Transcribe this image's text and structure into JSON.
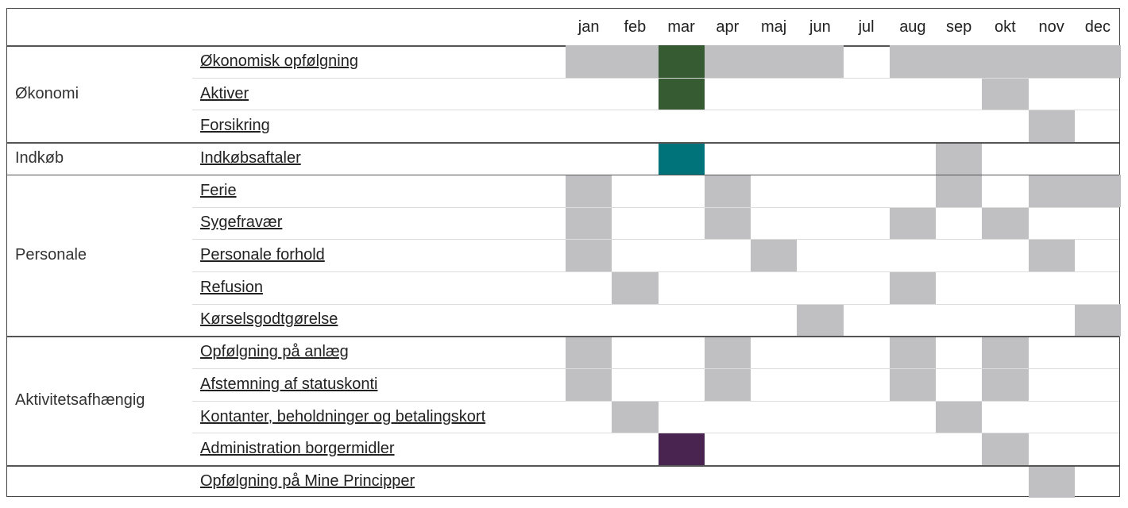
{
  "header": {
    "months": [
      "jan",
      "feb",
      "mar",
      "apr",
      "maj",
      "jun",
      "jul",
      "aug",
      "sep",
      "okt",
      "nov",
      "dec"
    ]
  },
  "groups": [
    {
      "name": "Økonomi",
      "rows": [
        {
          "label": "Økonomisk opfølgning",
          "cells": [
            "#c0bfc2",
            "#c0bfc2",
            "#365a32",
            "#c0bfc2",
            "#c0bfc2",
            "#c0bfc2",
            null,
            "#c0bfc2",
            "#c0bfc2",
            "#c0bfc2",
            "#c0bfc2",
            "#c0bfc2"
          ]
        },
        {
          "label": "Aktiver",
          "cells": [
            null,
            null,
            "#365a32",
            null,
            null,
            null,
            null,
            null,
            null,
            "#c0bfc2",
            null,
            null
          ]
        },
        {
          "label": "Forsikring",
          "cells": [
            null,
            null,
            null,
            null,
            null,
            null,
            null,
            null,
            null,
            null,
            "#c0bfc2",
            null
          ]
        }
      ]
    },
    {
      "name": "Indkøb",
      "rows": [
        {
          "label": "Indkøbsaftaler",
          "cells": [
            null,
            null,
            "#00727a",
            null,
            null,
            null,
            null,
            null,
            "#c0bfc2",
            null,
            null,
            null
          ]
        }
      ]
    },
    {
      "name": "Personale",
      "rows": [
        {
          "label": "Ferie",
          "cells": [
            "#c0bfc2",
            null,
            null,
            "#c0bfc2",
            null,
            null,
            null,
            null,
            "#c0bfc2",
            null,
            "#c0bfc2",
            "#c0bfc2"
          ]
        },
        {
          "label": "Sygefravær",
          "cells": [
            "#c0bfc2",
            null,
            null,
            "#c0bfc2",
            null,
            null,
            null,
            "#c0bfc2",
            null,
            "#c0bfc2",
            null,
            null
          ]
        },
        {
          "label": "Personale forhold",
          "cells": [
            "#c0bfc2",
            null,
            null,
            null,
            "#c0bfc2",
            null,
            null,
            null,
            null,
            null,
            "#c0bfc2",
            null
          ]
        },
        {
          "label": "Refusion",
          "cells": [
            null,
            "#c0bfc2",
            null,
            null,
            null,
            null,
            null,
            "#c0bfc2",
            null,
            null,
            null,
            null
          ]
        },
        {
          "label": "Kørselsgodtgørelse",
          "cells": [
            null,
            null,
            null,
            null,
            null,
            "#c0bfc2",
            null,
            null,
            null,
            null,
            null,
            "#c0bfc2"
          ]
        }
      ]
    },
    {
      "name": "Aktivitetsafhængig",
      "rows": [
        {
          "label": "Opfølgning på anlæg",
          "cells": [
            "#c0bfc2",
            null,
            null,
            "#c0bfc2",
            null,
            null,
            null,
            "#c0bfc2",
            null,
            "#c0bfc2",
            null,
            null
          ]
        },
        {
          "label": "Afstemning af statuskonti",
          "cells": [
            "#c0bfc2",
            null,
            null,
            "#c0bfc2",
            null,
            null,
            null,
            "#c0bfc2",
            null,
            "#c0bfc2",
            null,
            null
          ]
        },
        {
          "label": "Kontanter, beholdninger og betalingskort",
          "cells": [
            null,
            "#c0bfc2",
            null,
            null,
            null,
            null,
            null,
            null,
            "#c0bfc2",
            null,
            null,
            null
          ]
        },
        {
          "label": "Administration borgermidler",
          "cells": [
            null,
            null,
            "#4a2450",
            null,
            null,
            null,
            null,
            null,
            null,
            "#c0bfc2",
            null,
            null
          ]
        }
      ]
    },
    {
      "rows": [
        {
          "label": "Opfølgning på Mine Principper",
          "cells": [
            null,
            null,
            null,
            null,
            null,
            null,
            null,
            null,
            null,
            null,
            "#c0bfc2",
            null
          ]
        }
      ]
    }
  ]
}
